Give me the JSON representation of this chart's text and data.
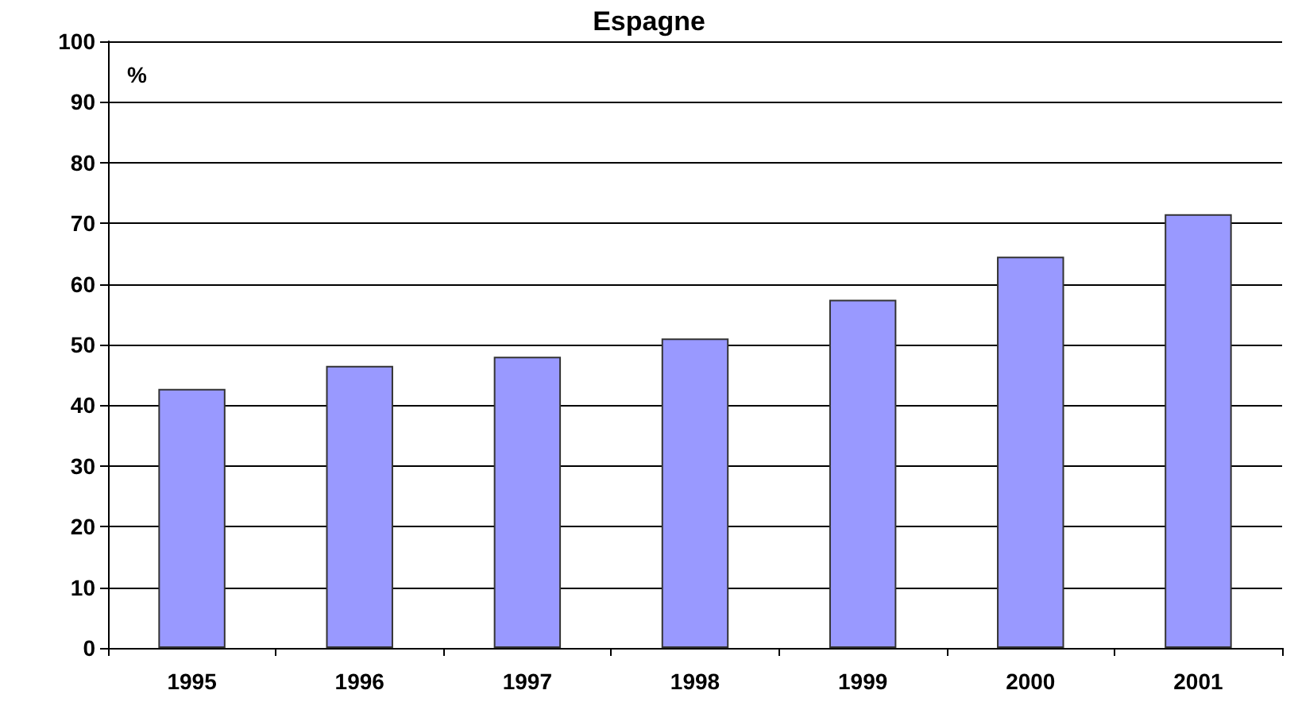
{
  "chart_data": {
    "type": "bar",
    "title": "Espagne",
    "ylabel": "%",
    "categories": [
      "1995",
      "1996",
      "1997",
      "1998",
      "1999",
      "2000",
      "2001"
    ],
    "values": [
      42.7,
      46.5,
      48.0,
      51.0,
      57.4,
      64.5,
      71.5
    ],
    "color": "#9999ff",
    "ylim": [
      0,
      100
    ],
    "yticks": [
      0,
      10,
      20,
      30,
      40,
      50,
      60,
      70,
      80,
      90,
      100
    ],
    "grid": "y"
  }
}
